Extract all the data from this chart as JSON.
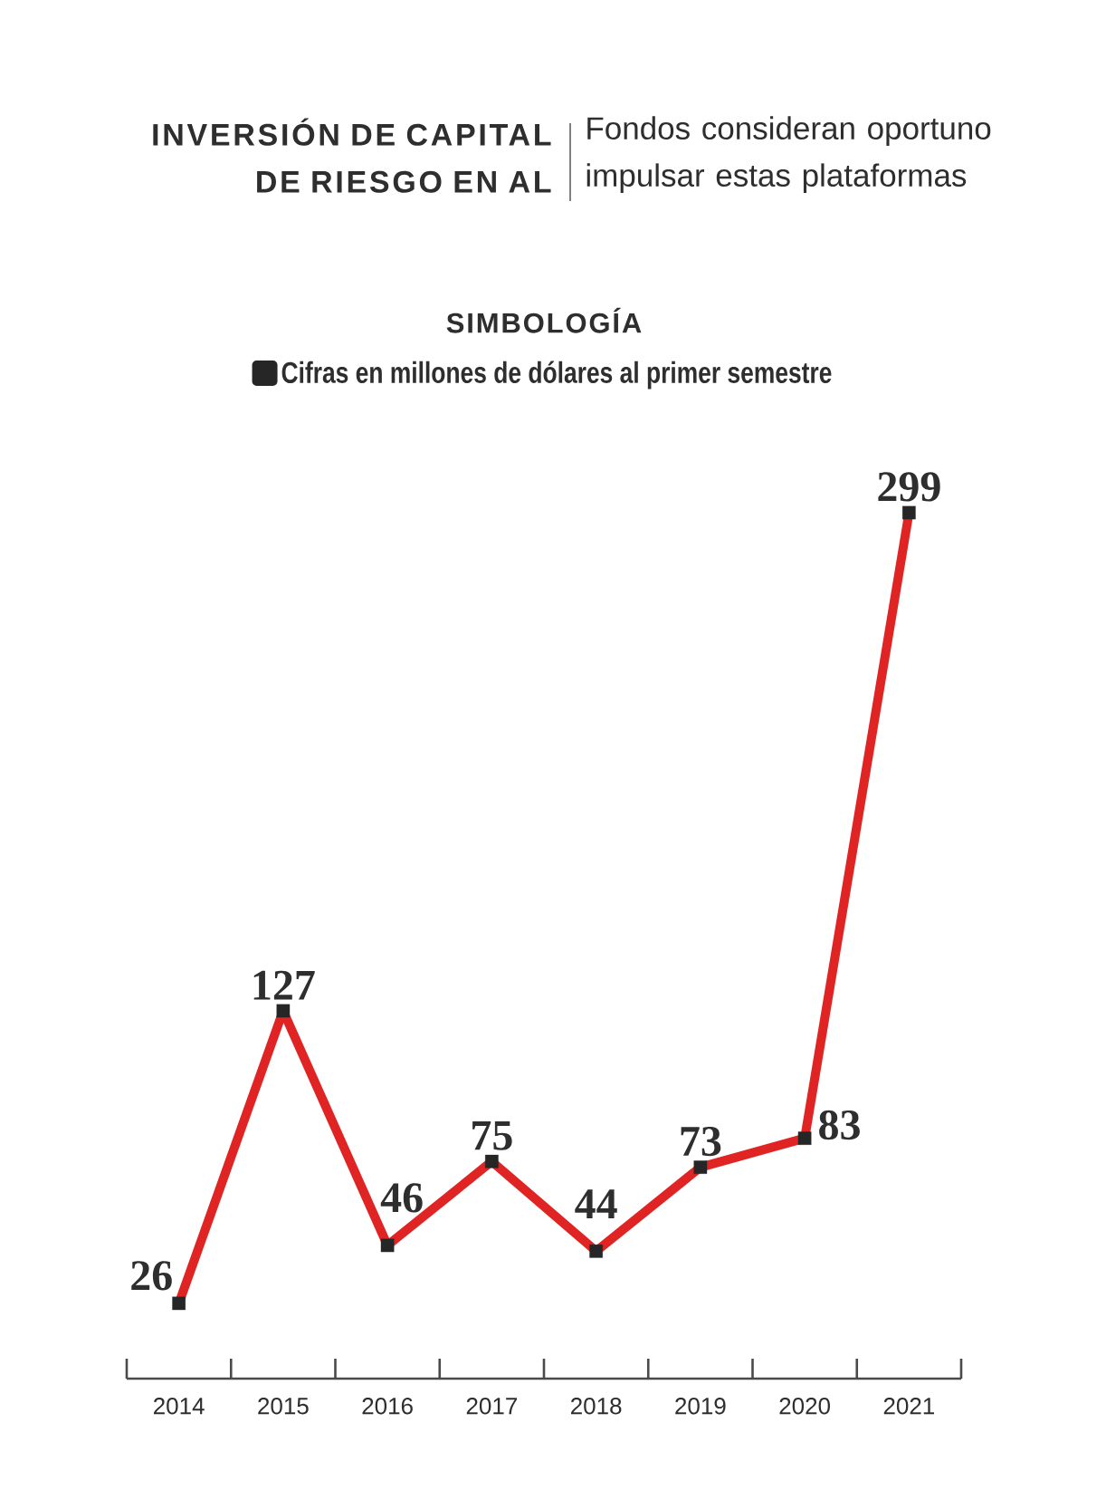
{
  "chart_data": {
    "type": "line",
    "title": "INVERSIÓN DE CAPITAL DE RIESGO EN AL",
    "subtitle": "Fondos consideran oportuno impulsar estas plataformas",
    "legend_title": "SIMBOLOGÍA",
    "categories": [
      "2014",
      "2015",
      "2016",
      "2017",
      "2018",
      "2019",
      "2020",
      "2021"
    ],
    "series": [
      {
        "name": "Cifras en millones de dólares al primer semestre",
        "color": "#e02424",
        "values": [
          26,
          127,
          46,
          75,
          44,
          73,
          83,
          299
        ]
      }
    ],
    "data_labels": true,
    "legend": "top",
    "marker": "square",
    "line_style": "solid"
  }
}
